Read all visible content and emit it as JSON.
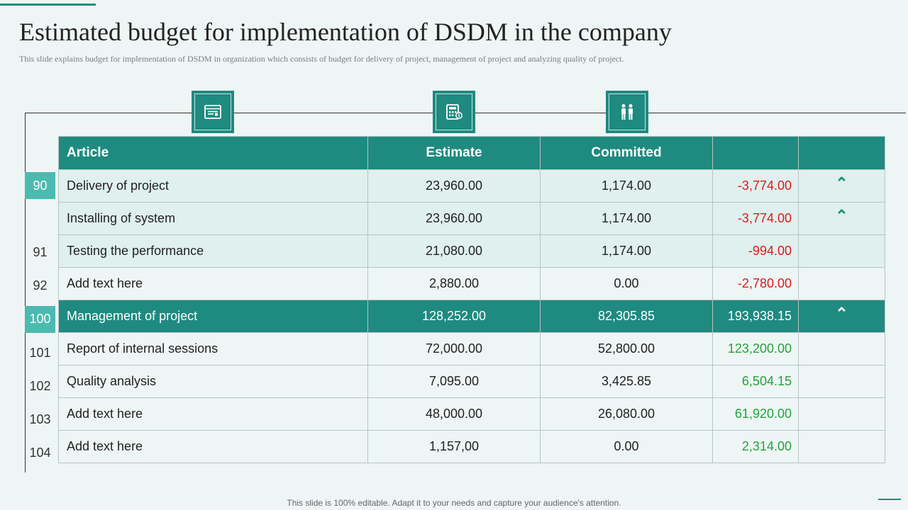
{
  "title": "Estimated budget for implementation of DSDM in the company",
  "subtitle": "This slide explains budget for implementation of DSDM in organization which consists of budget for delivery of project, management of project and analyzing quality of project.",
  "icons": [
    "budget-sheet-icon",
    "calculator-icon",
    "team-icon"
  ],
  "table": {
    "headers": [
      "Article",
      "Estimate",
      "Committed",
      ""
    ],
    "rows": [
      {
        "num": "90",
        "article": "Delivery of project",
        "estimate": "23,960.00",
        "committed": "1,174.00",
        "variance": "-3,774.00",
        "tone": "neg",
        "flag": "⌃",
        "style": "shaded"
      },
      {
        "num": "",
        "article": "Installing of system",
        "estimate": "23,960.00",
        "committed": "1,174.00",
        "variance": "-3,774.00",
        "tone": "neg",
        "flag": "⌃",
        "style": "shaded"
      },
      {
        "num": "91",
        "article": "Testing the performance",
        "estimate": "21,080.00",
        "committed": "1,174.00",
        "variance": "-994.00",
        "tone": "neg",
        "flag": "",
        "style": "shaded"
      },
      {
        "num": "92",
        "article": "Add text here",
        "estimate": "2,880.00",
        "committed": "0.00",
        "variance": "-2,780.00",
        "tone": "neg",
        "flag": "",
        "style": "plain"
      },
      {
        "num": "100",
        "article": "Management of project",
        "estimate": "128,252.00",
        "committed": "82,305.85",
        "variance": "193,938.15",
        "tone": "pos",
        "flag": "⌃",
        "style": "highlight"
      },
      {
        "num": "101",
        "article": "Report of internal sessions",
        "estimate": "72,000.00",
        "committed": "52,800.00",
        "variance": "123,200.00",
        "tone": "pos",
        "flag": "",
        "style": "plain"
      },
      {
        "num": "102",
        "article": "Quality analysis",
        "estimate": "7,095.00",
        "committed": "3,425.85",
        "variance": "6,504.15",
        "tone": "pos",
        "flag": "",
        "style": "plain"
      },
      {
        "num": "103",
        "article": "Add text here",
        "estimate": "48,000.00",
        "committed": "26,080.00",
        "variance": "61,920.00",
        "tone": "pos",
        "flag": "",
        "style": "plain"
      },
      {
        "num": "104",
        "article": "Add text here",
        "estimate": "1,157,00",
        "committed": "0.00",
        "variance": "2,314.00",
        "tone": "pos",
        "flag": "",
        "style": "plain"
      }
    ]
  },
  "footer": "This slide is 100% editable. Adapt it to your needs and capture your audience's attention.",
  "colors": {
    "accent": "#1f8a80",
    "light_accent": "#4cbab0",
    "negative": "#e0191a",
    "positive": "#23a33a"
  }
}
